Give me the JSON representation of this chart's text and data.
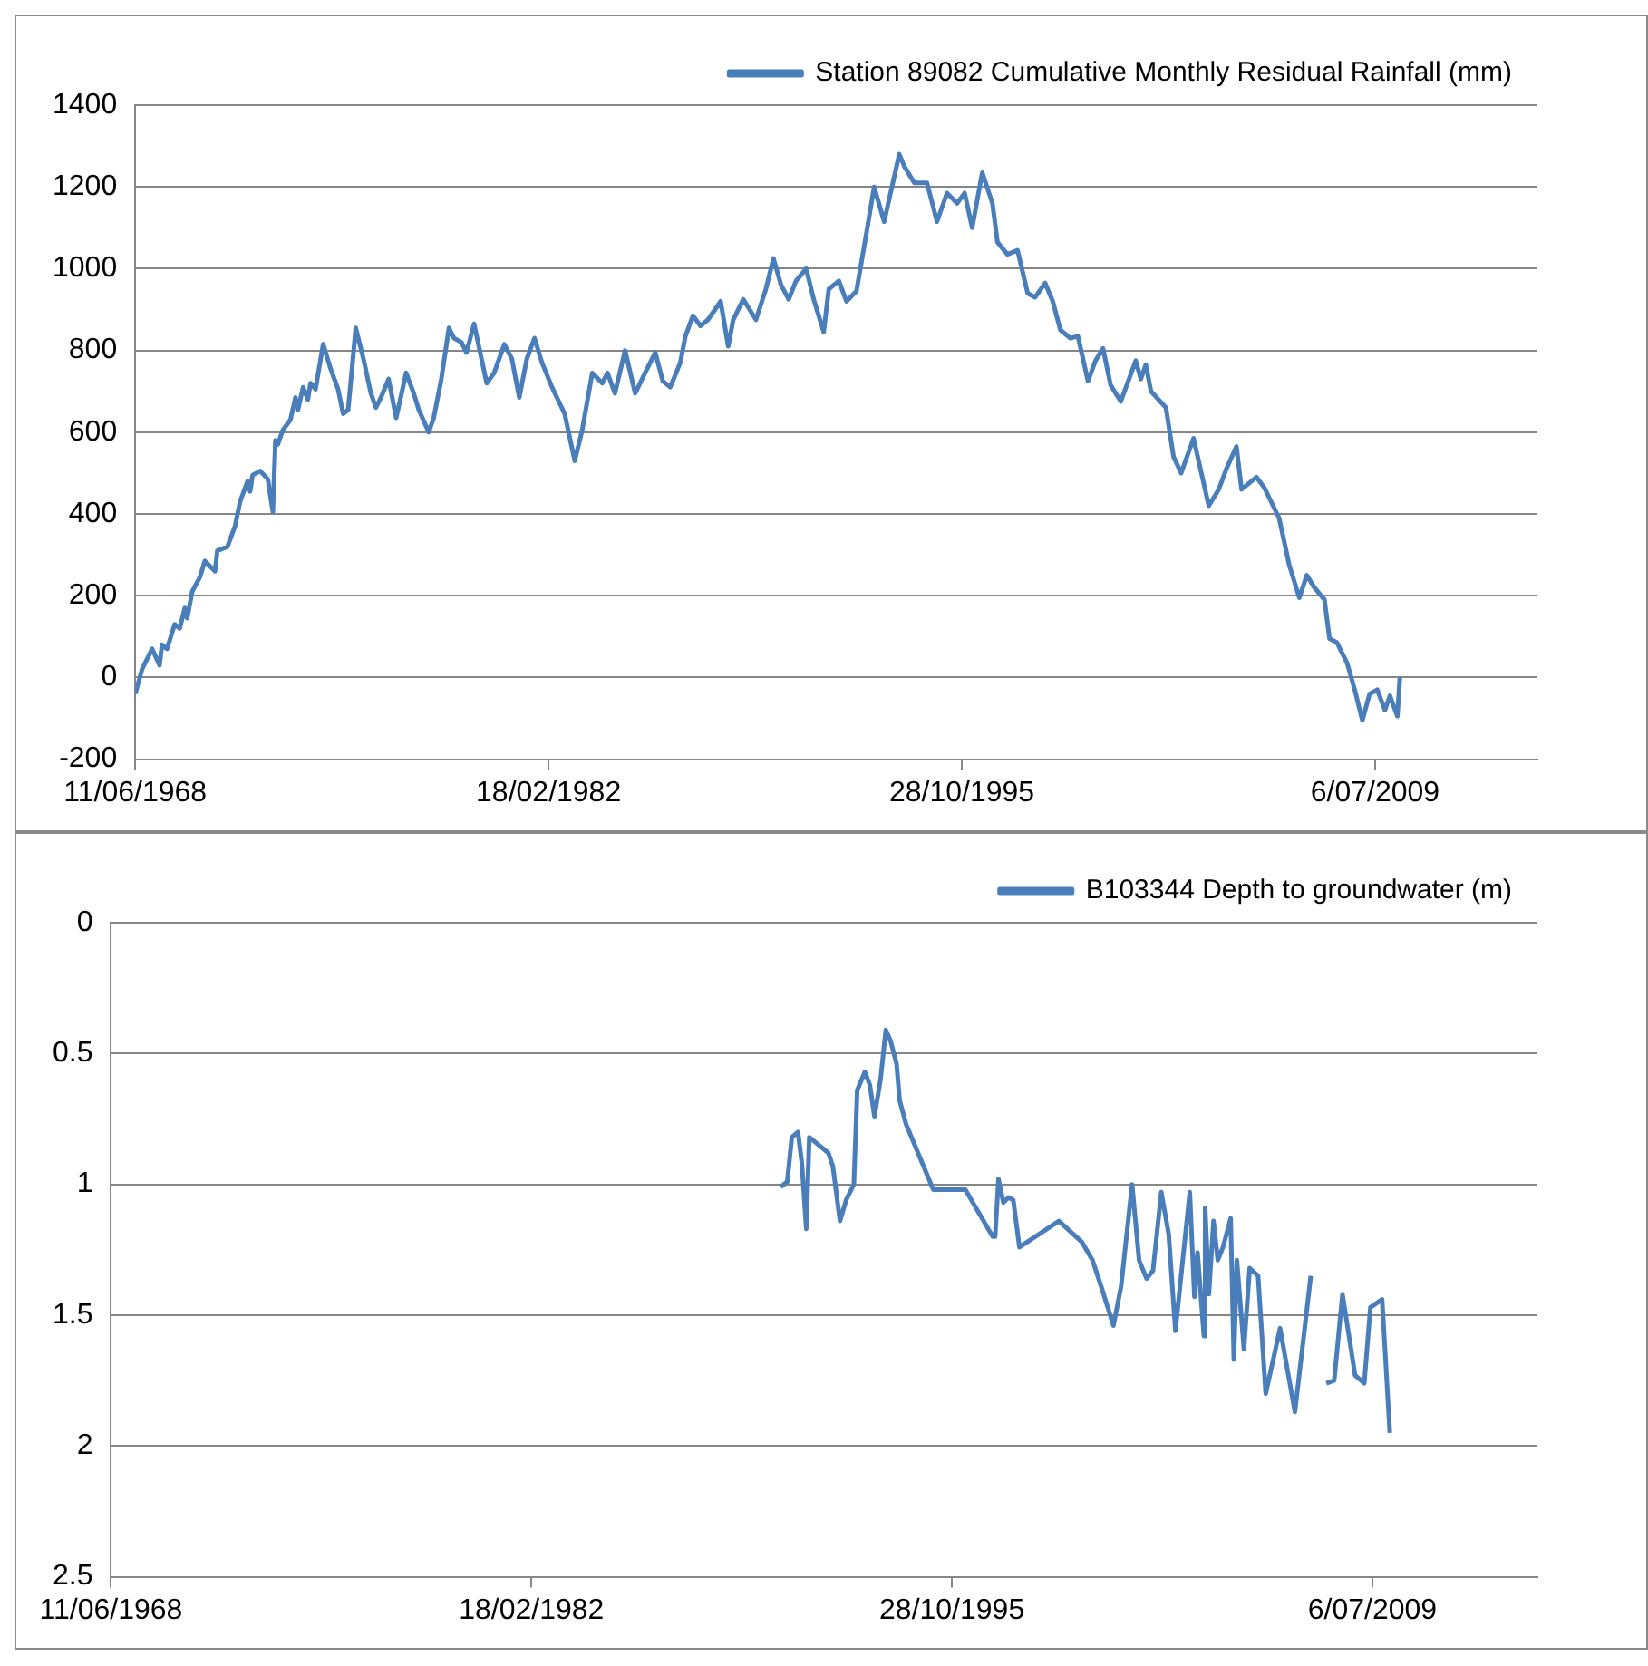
{
  "chart_data": [
    {
      "type": "line",
      "legend": "top right",
      "grid": "y",
      "marker": "none",
      "line_style": "solid",
      "xlim": [
        "1968-06-11",
        "2014-11-20"
      ],
      "xticks": [
        {
          "value": "1968-06-11",
          "label": "11/06/1968"
        },
        {
          "value": "1982-02-18",
          "label": "18/02/1982"
        },
        {
          "value": "1995-10-28",
          "label": "28/10/1995"
        },
        {
          "value": "2009-07-06",
          "label": "6/07/2009"
        }
      ],
      "ylim": [
        -200,
        1400
      ],
      "yticks": [
        -200,
        0,
        200,
        400,
        600,
        800,
        1000,
        1200,
        1400
      ],
      "x": [
        "1968-06-12",
        "1968-09",
        "1969-01",
        "1969-04",
        "1969-05",
        "1969-07",
        "1969-10",
        "1969-12",
        "1970-02",
        "1970-03",
        "1970-05",
        "1970-08",
        "1970-10",
        "1971-02",
        "1971-03",
        "1971-07",
        "1971-10",
        "1971-12",
        "1972-03",
        "1972-04",
        "1972-05",
        "1972-08",
        "1972-11",
        "1973-01",
        "1973-02",
        "1973-03",
        "1973-05",
        "1973-08",
        "1973-10",
        "1973-11",
        "1974-01",
        "1974-03",
        "1974-04",
        "1974-06",
        "1974-09",
        "1974-12",
        "1975-03",
        "1975-05",
        "1975-07",
        "1975-10",
        "1976-01",
        "1976-04",
        "1976-06",
        "1976-08",
        "1976-11",
        "1977-02",
        "1977-06",
        "1977-09",
        "1977-11",
        "1978-03",
        "1978-05",
        "1978-08",
        "1978-11",
        "1979-01",
        "1979-04",
        "1979-06",
        "1979-09",
        "1980-02",
        "1980-05",
        "1980-09",
        "1980-12",
        "1981-03",
        "1981-06",
        "1981-09",
        "1981-12",
        "1982-04",
        "1982-09",
        "1983-01",
        "1983-04",
        "1983-08",
        "1983-12",
        "1984-02",
        "1984-05",
        "1984-09",
        "1985-01",
        "1985-05",
        "1985-09",
        "1985-12",
        "1986-03",
        "1986-07",
        "1986-09",
        "1986-12",
        "1987-03",
        "1987-06",
        "1987-11",
        "1988-02",
        "1988-04",
        "1988-08",
        "1989-01",
        "1989-05",
        "1989-08",
        "1989-11",
        "1990-02",
        "1990-05",
        "1990-09",
        "1990-12",
        "1991-04",
        "1991-06",
        "1991-10",
        "1992-01",
        "1992-05",
        "1992-09",
        "1992-12",
        "1993-04",
        "1993-10",
        "1993-12",
        "1994-04",
        "1994-09",
        "1995-01",
        "1995-05",
        "1995-09",
        "1995-12",
        "1996-03",
        "1996-07",
        "1996-11",
        "1997-01",
        "1997-05",
        "1997-09",
        "1998-01",
        "1998-04",
        "1998-08",
        "1998-11",
        "1999-02",
        "1999-06",
        "1999-09",
        "2000-01",
        "2000-04",
        "2000-07",
        "2000-10",
        "2001-02",
        "2001-08",
        "2001-10",
        "2001-12",
        "2002-02",
        "2002-08",
        "2002-11",
        "2003-02",
        "2003-07",
        "2004-01",
        "2004-05",
        "2004-08",
        "2004-12",
        "2005-02",
        "2005-08",
        "2005-11",
        "2006-05",
        "2006-09",
        "2007-01",
        "2007-04",
        "2007-07",
        "2007-11",
        "2008-01",
        "2008-04",
        "2008-08",
        "2008-11",
        "2009-02",
        "2009-05",
        "2009-08",
        "2009-11",
        "2010-01",
        "2010-04",
        "2010-05"
      ],
      "series": [
        {
          "name": "Station 89082 Cumulative Monthly Residual Rainfall (mm)",
          "color": "#4a7ebb",
          "values": [
            -40,
            20,
            70,
            30,
            80,
            70,
            130,
            120,
            170,
            145,
            210,
            245,
            285,
            260,
            310,
            320,
            370,
            430,
            480,
            455,
            495,
            505,
            485,
            405,
            580,
            570,
            605,
            630,
            685,
            655,
            710,
            680,
            720,
            705,
            815,
            755,
            705,
            645,
            655,
            855,
            780,
            695,
            660,
            685,
            730,
            635,
            745,
            695,
            655,
            600,
            635,
            730,
            855,
            830,
            820,
            795,
            865,
            720,
            745,
            815,
            780,
            685,
            780,
            830,
            770,
            710,
            645,
            530,
            605,
            745,
            720,
            745,
            695,
            800,
            695,
            745,
            795,
            725,
            710,
            770,
            835,
            885,
            860,
            875,
            920,
            810,
            875,
            925,
            875,
            950,
            1025,
            960,
            925,
            970,
            1000,
            925,
            845,
            950,
            970,
            920,
            945,
            1090,
            1200,
            1115,
            1280,
            1250,
            1210,
            1210,
            1115,
            1185,
            1160,
            1185,
            1100,
            1235,
            1160,
            1065,
            1035,
            1045,
            940,
            930,
            965,
            920,
            850,
            830,
            835,
            725,
            775,
            805,
            715,
            675,
            775,
            730,
            765,
            700,
            660,
            540,
            500,
            585,
            420,
            460,
            510,
            565,
            460,
            490,
            465,
            390,
            275,
            195,
            250,
            220,
            190,
            95,
            85,
            35,
            -30,
            -105,
            -40,
            -30,
            -80,
            -45,
            -95,
            0
          ]
        }
      ]
    },
    {
      "type": "line",
      "legend": "top right",
      "grid": "y",
      "marker": "none",
      "line_style": "solid",
      "xlim": [
        "1968-06-11",
        "2014-11-20"
      ],
      "xticks": [
        {
          "value": "1968-06-11",
          "label": "11/06/1968"
        },
        {
          "value": "1982-02-18",
          "label": "18/02/1982"
        },
        {
          "value": "1995-10-28",
          "label": "28/10/1995"
        },
        {
          "value": "2009-07-06",
          "label": "6/07/2009"
        }
      ],
      "ylim": [
        2.5,
        0
      ],
      "yticks": [
        0,
        0.5,
        1,
        1.5,
        2,
        2.5
      ],
      "x": [
        "1990-04-01",
        "1990-06-18",
        "1990-08-11",
        "1990-10-23",
        "1990-12-09",
        "1991-01-30",
        "1991-03-07",
        "1991-10-20",
        "1991-12-12",
        "1992-03-06",
        "1992-05-18",
        "1992-08-18",
        "1992-09-27",
        "1992-12-27",
        "1993-02-24",
        "1993-04-20",
        "1993-07-01",
        "1993-09-02",
        "1993-10-27",
        "1994-01-08",
        "1994-02-14",
        "1994-05-01",
        "1995-03-20",
        "1996-04-05",
        "1997-02-24",
        "1997-03-25",
        "1997-05-04",
        "1997-07-01",
        "1997-09-02",
        "1997-10-27",
        "1998-01-08",
        "1999-04-23",
        "2000-01-19",
        "2000-05-26",
        "2000-09-16",
        "2001-01-30",
        "2001-05-01",
        "2001-09-09",
        "2001-12-01",
        "2002-02-28",
        "2002-05-15",
        "2002-08-22",
        "2002-11-18",
        "2003-02-06",
        "2003-07-27",
        "2003-09-20",
        "2003-10-27",
        "2004-01-11",
        "2004-01-26",
        "2004-03-10",
        "2004-05-04",
        "2004-06-24",
        "2004-08-25",
        "2004-11-24",
        "2005-01-01",
        "2005-02-06",
        "2005-05-01",
        "2005-07-08",
        "2005-10-16",
        "2006-01-15",
        "2006-07-05",
        "2006-12-28",
        "2007-07-05",
        "2007-10-01",
        "2008-01-05",
        "2008-04-08",
        "2008-07-16",
        "2008-12-13",
        "2009-04-01",
        "2009-06-13",
        "2009-10-30",
        "2010-01-30"
      ],
      "series": [
        {
          "name": "B103344 Depth to groundwater (m)",
          "color": "#4a7ebb",
          "values": [
            1.01,
            0.99,
            0.82,
            0.8,
            0.92,
            1.17,
            0.82,
            0.88,
            0.93,
            1.14,
            1.06,
            1.0,
            0.64,
            0.57,
            0.62,
            0.74,
            0.6,
            0.41,
            0.45,
            0.54,
            0.68,
            0.77,
            1.02,
            1.02,
            1.2,
            1.2,
            0.98,
            1.07,
            1.05,
            1.06,
            1.24,
            1.14,
            1.22,
            1.29,
            1.4,
            1.54,
            1.39,
            1.0,
            1.29,
            1.36,
            1.33,
            1.03,
            1.19,
            1.56,
            1.03,
            1.43,
            1.26,
            1.58,
            1.09,
            1.42,
            1.14,
            1.29,
            1.24,
            1.13,
            1.67,
            1.29,
            1.63,
            1.32,
            1.35,
            1.8,
            1.55,
            1.87,
            1.35,
            null,
            1.76,
            1.75,
            1.42,
            1.73,
            1.76,
            1.47,
            1.44,
            1.95
          ]
        }
      ]
    }
  ]
}
